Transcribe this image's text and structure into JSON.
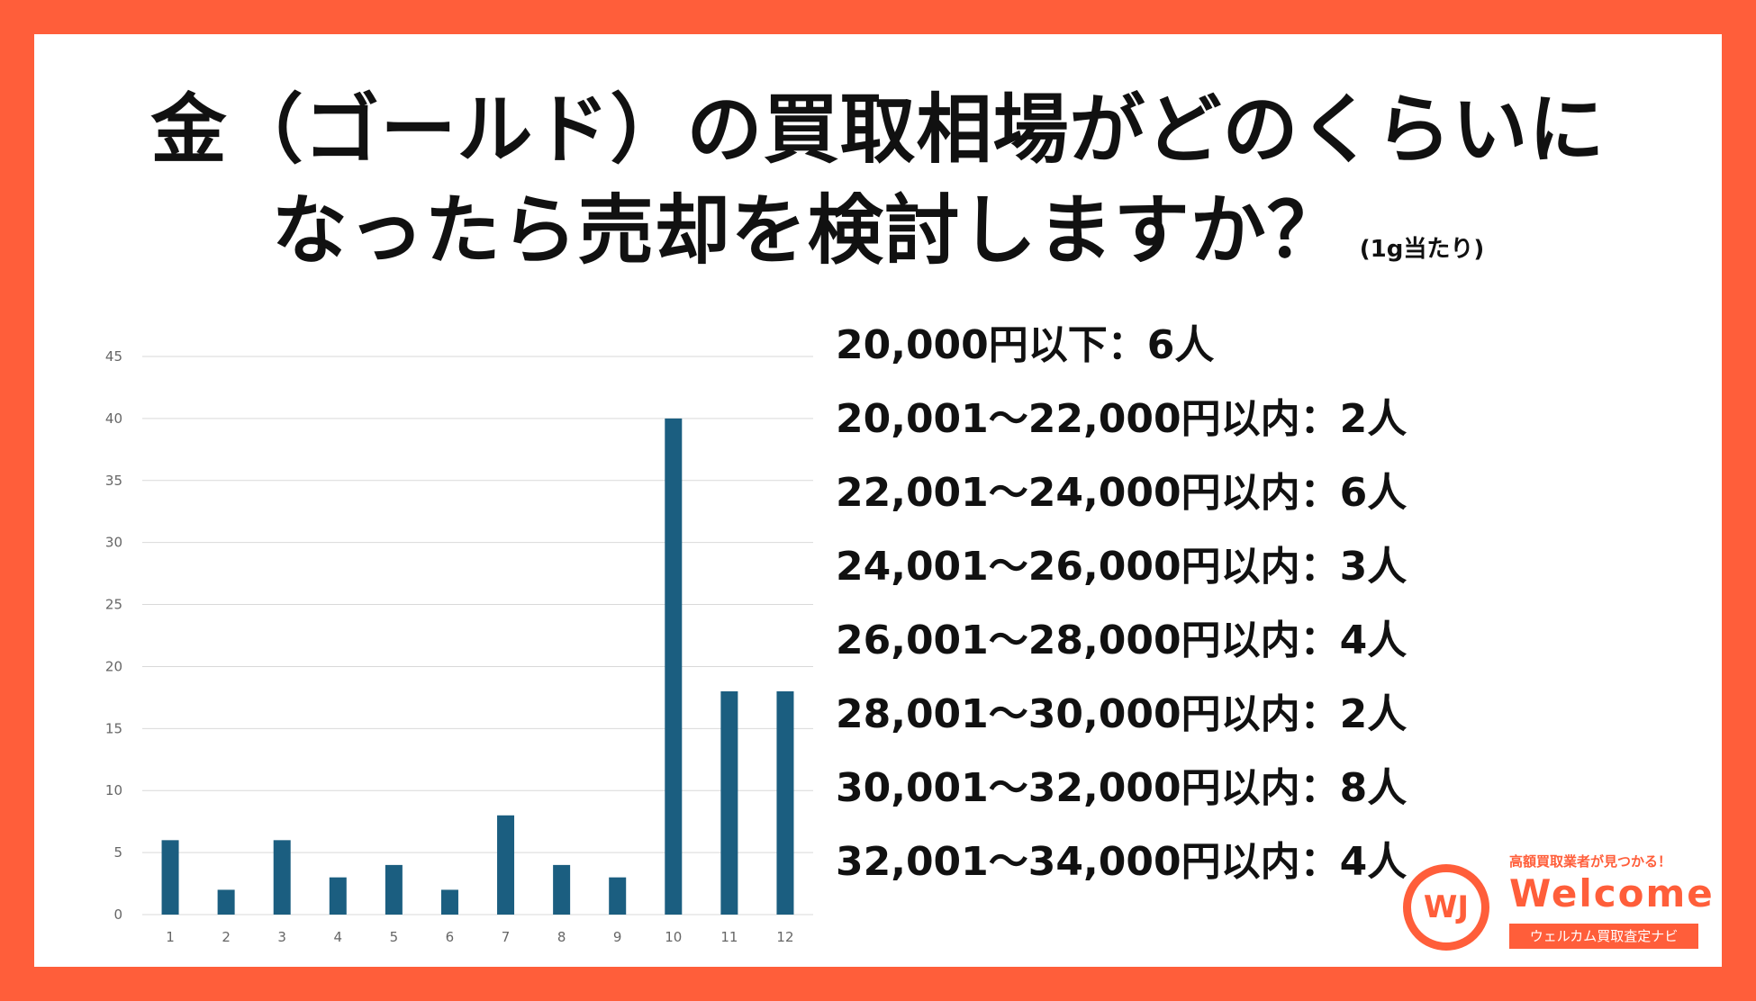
{
  "title": {
    "line1": "金（ゴールド）の買取相場がどのくらいに",
    "line2": "なったら売却を検討しますか？",
    "note": "(1g当たり)"
  },
  "chart_data": {
    "type": "bar",
    "categories": [
      "1",
      "2",
      "3",
      "4",
      "5",
      "6",
      "7",
      "8",
      "9",
      "10",
      "11",
      "12"
    ],
    "values": [
      6,
      2,
      6,
      3,
      4,
      2,
      8,
      4,
      3,
      40,
      18,
      18
    ],
    "ylim": [
      0,
      45
    ],
    "yticks": [
      "0",
      "5",
      "10",
      "15",
      "20",
      "25",
      "30",
      "35",
      "40",
      "45"
    ],
    "grid": true,
    "bar_color": "#1b5e80",
    "title": "",
    "xlabel": "",
    "ylabel": ""
  },
  "legend_items": [
    "20,000円以下：6人",
    "20,001～22,000円以内：2人",
    "22,001～24,000円以内：6人",
    "24,001～26,000円以内：3人",
    "26,001～28,000円以内：4人",
    "28,001～30,000円以内：2人",
    "30,001～32,000円以内：8人",
    "32,001～34,000円以内：4人"
  ],
  "logo": {
    "tagline": "高額買取業者が見つかる！",
    "wordmark": "Welcome",
    "bar_text": "ウェルカム買取査定ナビ"
  },
  "colors": {
    "frame": "#ff5e3a",
    "bar": "#1b5e80",
    "grid": "#d9d9d9"
  }
}
